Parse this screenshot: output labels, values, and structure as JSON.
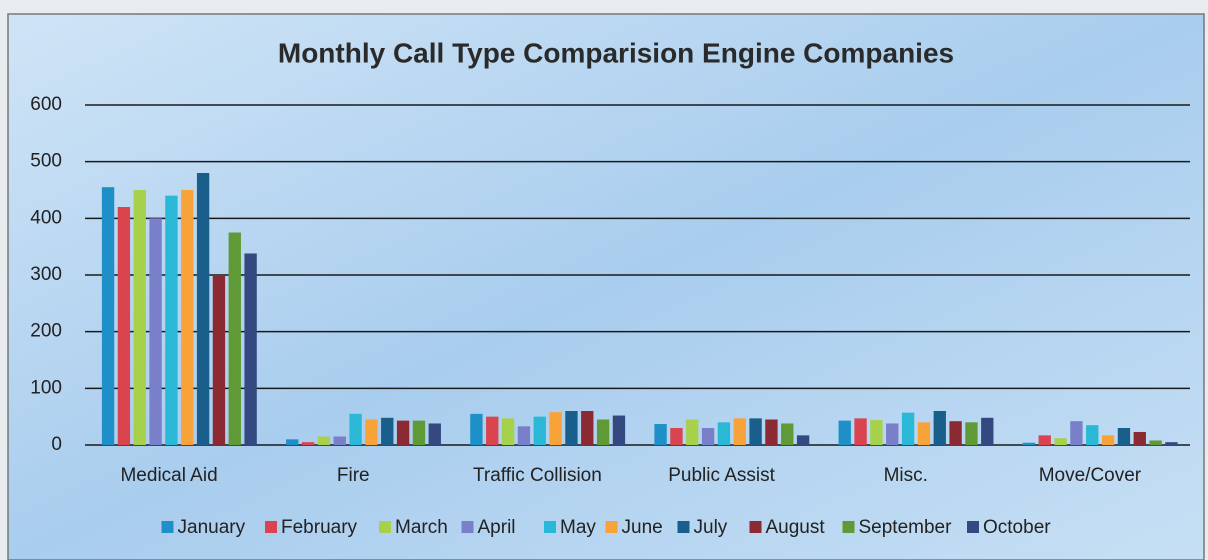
{
  "chart_data": {
    "type": "bar",
    "title": "Monthly Call Type Comparision Engine Companies",
    "categories": [
      "Medical Aid",
      "Fire",
      "Traffic Collision",
      "Public Assist",
      "Misc.",
      "Move/Cover"
    ],
    "series": [
      {
        "name": "January",
        "color": "#1f8fc7",
        "values": [
          455,
          10,
          55,
          37,
          43,
          4
        ]
      },
      {
        "name": "February",
        "color": "#d9444f",
        "values": [
          420,
          5,
          50,
          30,
          47,
          17
        ]
      },
      {
        "name": "March",
        "color": "#a7d14a",
        "values": [
          450,
          15,
          47,
          45,
          44,
          12
        ]
      },
      {
        "name": "April",
        "color": "#7a7fc9",
        "values": [
          400,
          15,
          33,
          30,
          38,
          42
        ]
      },
      {
        "name": "May",
        "color": "#2ab8d6",
        "values": [
          440,
          55,
          50,
          40,
          57,
          35
        ]
      },
      {
        "name": "June",
        "color": "#f8a33a",
        "values": [
          450,
          45,
          58,
          47,
          40,
          17
        ]
      },
      {
        "name": "July",
        "color": "#1a5f8c",
        "values": [
          480,
          48,
          60,
          47,
          60,
          30
        ]
      },
      {
        "name": "August",
        "color": "#8c2a34",
        "values": [
          300,
          43,
          60,
          45,
          42,
          23
        ]
      },
      {
        "name": "September",
        "color": "#5f9a36",
        "values": [
          375,
          43,
          45,
          38,
          40,
          8
        ]
      },
      {
        "name": "October",
        "color": "#34497f",
        "values": [
          338,
          38,
          52,
          17,
          48,
          5
        ]
      }
    ],
    "ylim": [
      0,
      600
    ],
    "yticks": [
      0,
      100,
      200,
      300,
      400,
      500,
      600
    ],
    "grid": true,
    "legend": "bottom"
  }
}
